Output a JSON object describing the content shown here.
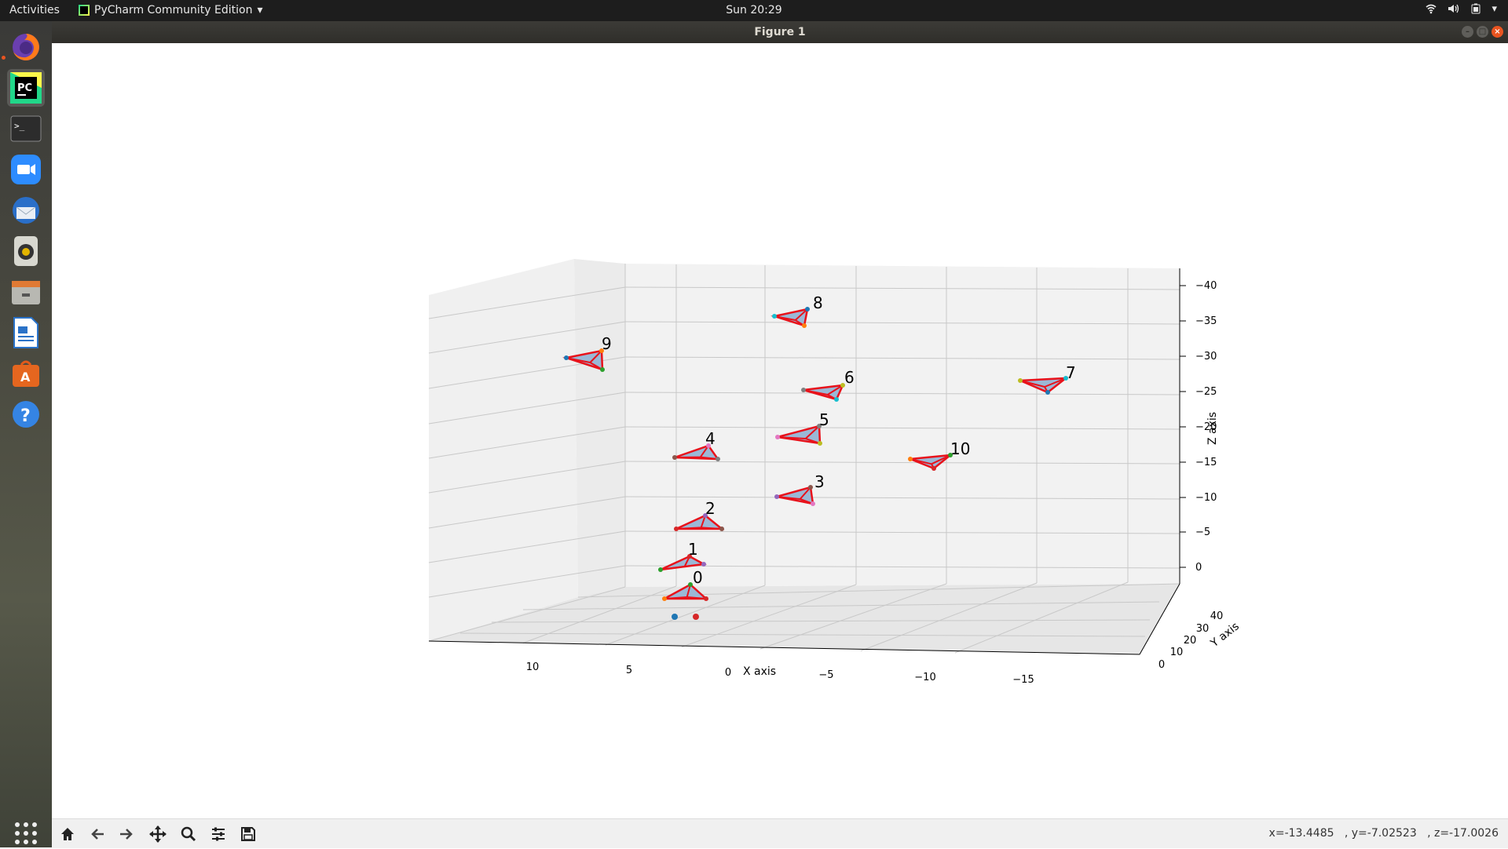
{
  "topbar": {
    "activities": "Activities",
    "app_name": "PyCharm Community Edition",
    "clock": "Sun 20:29"
  },
  "window": {
    "title": "Figure 1"
  },
  "toolbar": {
    "coords": "x=-13.4485   , y=-7.02523   , z=-17.0026",
    "buttons": [
      "home-icon",
      "back-icon",
      "forward-icon",
      "pan-icon",
      "zoom-icon",
      "configure-icon",
      "save-icon"
    ]
  },
  "dock": {
    "items": [
      "firefox-icon",
      "pycharm-icon",
      "terminal-icon",
      "zoom-app-icon",
      "thunderbird-icon",
      "rhythmbox-icon",
      "files-icon",
      "writer-icon",
      "software-icon",
      "help-icon"
    ],
    "active": "pycharm-icon"
  },
  "chart_data": {
    "type": "scatter3d",
    "xlabel": "X axis",
    "ylabel": "Y axis",
    "zlabel": "Z axis",
    "x_ticks": [
      "10",
      "5",
      "0",
      "−5",
      "−10",
      "−15"
    ],
    "y_ticks": [
      "0",
      "10",
      "20",
      "30",
      "40"
    ],
    "z_ticks": [
      "0",
      "−5",
      "−10",
      "−15",
      "−20",
      "−25",
      "−30",
      "−35",
      "−40"
    ],
    "triangles": [
      {
        "label": "0"
      },
      {
        "label": "1"
      },
      {
        "label": "2"
      },
      {
        "label": "3"
      },
      {
        "label": "4"
      },
      {
        "label": "5"
      },
      {
        "label": "6"
      },
      {
        "label": "7"
      },
      {
        "label": "8"
      },
      {
        "label": "9"
      },
      {
        "label": "10"
      }
    ],
    "colors": {
      "face": "#9bb8d6",
      "edge": "#e8121b",
      "origin_blue": "#1f77b4",
      "origin_red": "#d62728"
    }
  }
}
